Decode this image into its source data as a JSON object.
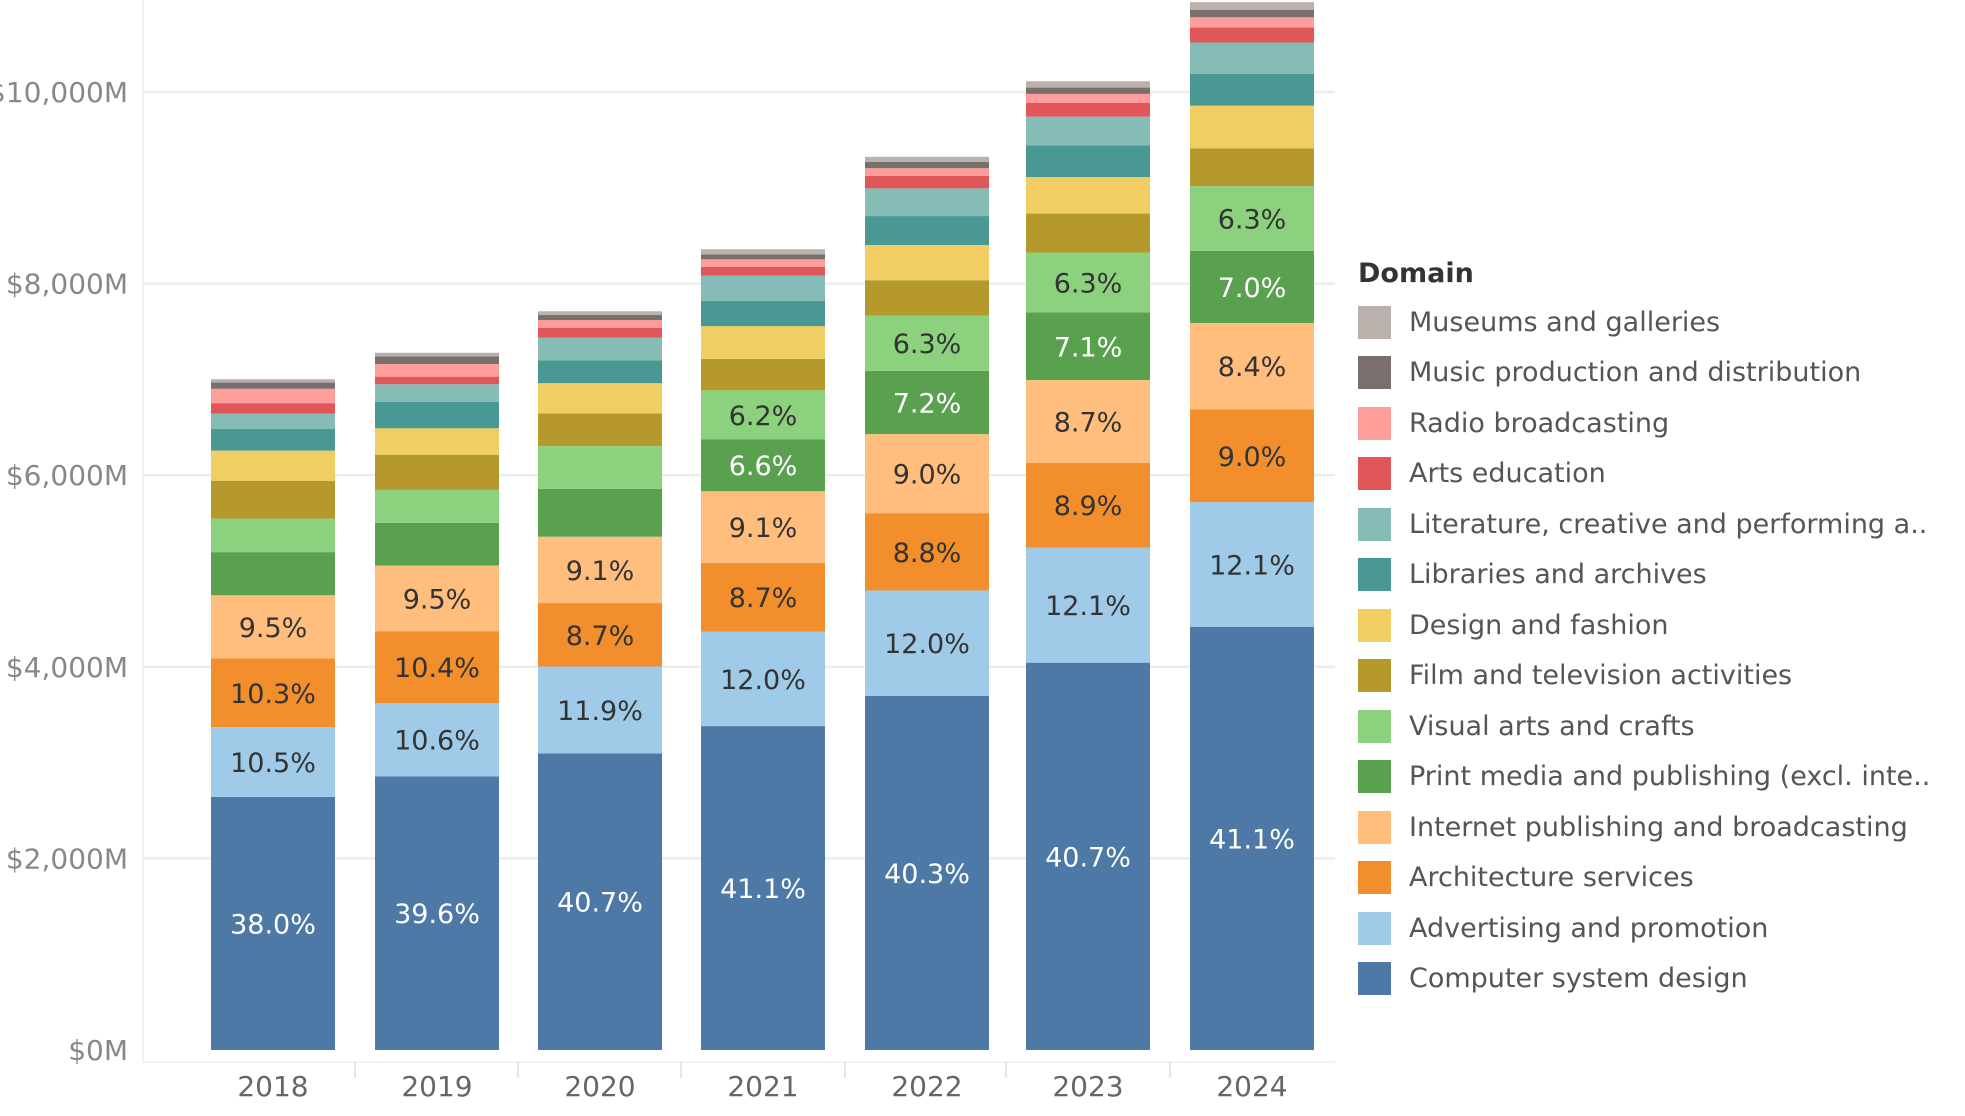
{
  "chart_data": {
    "type": "bar",
    "stacked": true,
    "categories": [
      "2018",
      "2019",
      "2020",
      "2021",
      "2022",
      "2023",
      "2024"
    ],
    "ylim": [
      0,
      11000
    ],
    "yticks": [
      0,
      2000,
      4000,
      6000,
      8000,
      10000
    ],
    "ytick_labels": [
      "$0M",
      "$2,000M",
      "$4,000M",
      "$6,000M",
      "$8,000M",
      "$10,000M"
    ],
    "grid": true,
    "legend_title": "Domain",
    "legend_position": "right",
    "series": [
      {
        "name": "Computer system design",
        "color": "#4e79a7",
        "label_color": "#ffffff",
        "values": [
          2641,
          2857,
          3097,
          3381,
          3696,
          4043,
          4418
        ],
        "labels": [
          "38.0%",
          "39.6%",
          "40.7%",
          "41.1%",
          "40.3%",
          "40.7%",
          "41.1%"
        ]
      },
      {
        "name": "Advertising and promotion",
        "color": "#a0cbe8",
        "label_color": "#333333",
        "values": [
          730,
          765,
          906,
          987,
          1101,
          1202,
          1301
        ],
        "labels": [
          "10.5%",
          "10.6%",
          "11.9%",
          "12.0%",
          "12.0%",
          "12.1%",
          "12.1%"
        ]
      },
      {
        "name": "Architecture services",
        "color": "#f28e2b",
        "label_color": "#333333",
        "values": [
          716,
          750,
          662,
          716,
          807,
          884,
          967
        ],
        "labels": [
          "10.3%",
          "10.4%",
          "8.7%",
          "8.7%",
          "8.8%",
          "8.9%",
          "9.0%"
        ]
      },
      {
        "name": "Internet publishing and broadcasting",
        "color": "#ffbe7d",
        "label_color": "#333333",
        "values": [
          660,
          685,
          693,
          749,
          825,
          864,
          903
        ],
        "labels": [
          "9.5%",
          "9.5%",
          "9.1%",
          "9.1%",
          "9.0%",
          "8.7%",
          "8.4%"
        ]
      },
      {
        "name": "Print media and publishing (excl. inte..",
        "color": "#59a14f",
        "label_color": "#ffffff",
        "values": [
          450,
          447,
          499,
          543,
          660,
          705,
          752
        ],
        "labels": [
          "",
          "",
          "",
          "6.6%",
          "7.2%",
          "7.1%",
          "7.0%"
        ]
      },
      {
        "name": "Visual arts and crafts",
        "color": "#8cd17d",
        "label_color": "#333333",
        "values": [
          350,
          342,
          447,
          510,
          578,
          626,
          677
        ],
        "labels": [
          "",
          "",
          "",
          "6.2%",
          "6.3%",
          "6.3%",
          "6.3%"
        ]
      },
      {
        "name": "Film and television activities",
        "color": "#b6992d",
        "label_color": "#333333",
        "values": [
          395,
          368,
          342,
          328,
          368,
          407,
          394
        ],
        "labels": [
          "",
          "",
          "",
          "",
          "",
          "",
          ""
        ]
      },
      {
        "name": "Design and fashion",
        "color": "#f1ce63",
        "label_color": "#333333",
        "values": [
          315,
          276,
          315,
          342,
          368,
          381,
          447
        ],
        "labels": [
          "",
          "",
          "",
          "",
          "",
          "",
          ""
        ]
      },
      {
        "name": "Libraries and archives",
        "color": "#499894",
        "label_color": "#333333",
        "values": [
          225,
          276,
          237,
          263,
          302,
          329,
          329
        ],
        "labels": [
          "",
          "",
          "",
          "",
          "",
          "",
          ""
        ]
      },
      {
        "name": "Literature, creative and performing a..",
        "color": "#86bcb6",
        "label_color": "#333333",
        "values": [
          160,
          184,
          237,
          263,
          289,
          302,
          329
        ],
        "labels": [
          "",
          "",
          "",
          "",
          "",
          "",
          ""
        ]
      },
      {
        "name": "Arts education",
        "color": "#e15759",
        "label_color": "#333333",
        "values": [
          110,
          79,
          105,
          92,
          131,
          145,
          158
        ],
        "labels": [
          "",
          "",
          "",
          "",
          "",
          "",
          ""
        ]
      },
      {
        "name": "Radio broadcasting",
        "color": "#ff9d9a",
        "label_color": "#333333",
        "values": [
          150,
          131,
          79,
          79,
          79,
          92,
          105
        ],
        "labels": [
          "",
          "",
          "",
          "",
          "",
          "",
          ""
        ]
      },
      {
        "name": "Music production and distribution",
        "color": "#79706e",
        "label_color": "#333333",
        "values": [
          65,
          79,
          53,
          53,
          66,
          66,
          79
        ],
        "labels": [
          "",
          "",
          "",
          "",
          "",
          "",
          ""
        ]
      },
      {
        "name": "Museums and galleries",
        "color": "#bab0ac",
        "label_color": "#333333",
        "values": [
          35,
          39,
          39,
          53,
          53,
          66,
          79
        ],
        "labels": [
          "",
          "",
          "",
          "",
          "",
          "",
          ""
        ]
      }
    ]
  }
}
